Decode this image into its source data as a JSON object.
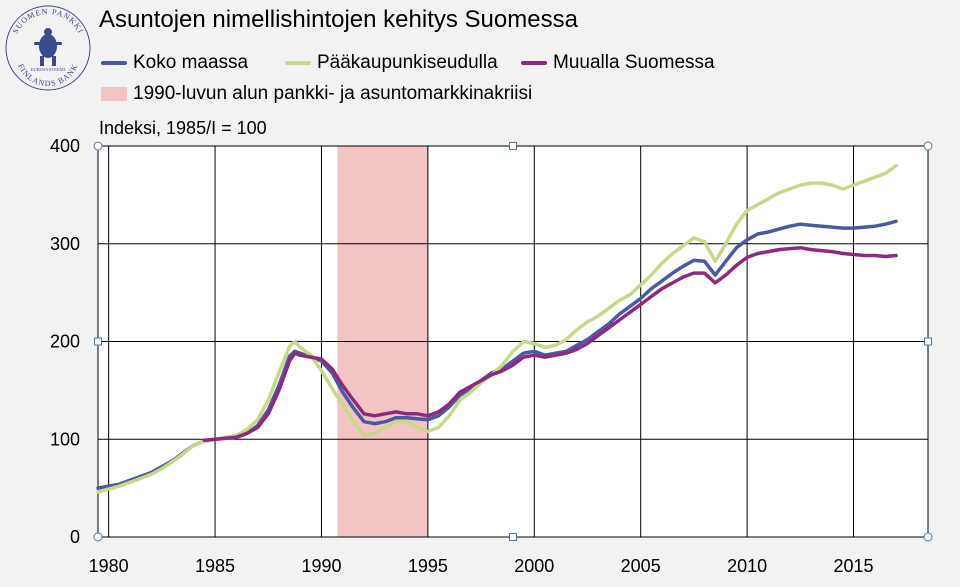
{
  "title": "Asuntojen nimellishintojen kehitys Suomessa",
  "logo": {
    "icon": "suomen-pankki-seal-icon",
    "text_top": "SUOMEN PANKKI",
    "text_bottom": "FINLANDS BANK",
    "text_inner": "EUROSYSTEEMI"
  },
  "colors": {
    "background": "#f2f2f2",
    "koko": "#4a5a9e",
    "paakaupunki": "#c6d98a",
    "muualla": "#8e2a7e",
    "crisis": "#f4c4c4",
    "grid": "#000000"
  },
  "chart_data": {
    "type": "line",
    "index_label": "Indeksi, 1985/I = 100",
    "xlim": [
      1979.5,
      2018.5
    ],
    "ylim": [
      0,
      400
    ],
    "xticks": [
      "1980",
      "1985",
      "1990",
      "1995",
      "2000",
      "2005",
      "2010",
      "2015"
    ],
    "yticks": [
      "0",
      "100",
      "200",
      "300",
      "400"
    ],
    "grid": true,
    "legend_position": "top",
    "shaded_range": {
      "name": "1990-luvun alun pankki- ja asuntomarkkinakriisi",
      "x": [
        1990.75,
        1995.0
      ]
    },
    "series": [
      {
        "name": "Koko maassa",
        "color_key": "koko",
        "points": [
          [
            1979.5,
            50
          ],
          [
            1980.5,
            54
          ],
          [
            1981.0,
            58
          ],
          [
            1981.5,
            62
          ],
          [
            1982.0,
            66
          ],
          [
            1982.5,
            72
          ],
          [
            1983.0,
            78
          ],
          [
            1983.5,
            86
          ],
          [
            1984.0,
            94
          ],
          [
            1984.5,
            98
          ],
          [
            1985.0,
            100
          ],
          [
            1985.5,
            101
          ],
          [
            1986.0,
            102
          ],
          [
            1986.5,
            106
          ],
          [
            1987.0,
            114
          ],
          [
            1987.5,
            130
          ],
          [
            1988.0,
            155
          ],
          [
            1988.5,
            185
          ],
          [
            1988.75,
            190
          ],
          [
            1989.0,
            188
          ],
          [
            1989.5,
            184
          ],
          [
            1990.0,
            180
          ],
          [
            1990.5,
            168
          ],
          [
            1991.0,
            148
          ],
          [
            1991.5,
            132
          ],
          [
            1992.0,
            118
          ],
          [
            1992.5,
            116
          ],
          [
            1993.0,
            118
          ],
          [
            1993.5,
            122
          ],
          [
            1994.0,
            122
          ],
          [
            1994.5,
            121
          ],
          [
            1995.0,
            120
          ],
          [
            1995.5,
            124
          ],
          [
            1996.0,
            133
          ],
          [
            1996.5,
            145
          ],
          [
            1997.0,
            152
          ],
          [
            1997.5,
            160
          ],
          [
            1998.0,
            168
          ],
          [
            1998.5,
            172
          ],
          [
            1999.0,
            180
          ],
          [
            1999.5,
            188
          ],
          [
            2000.0,
            190
          ],
          [
            2000.5,
            186
          ],
          [
            2001.0,
            188
          ],
          [
            2001.5,
            190
          ],
          [
            2002.0,
            196
          ],
          [
            2002.5,
            202
          ],
          [
            2003.0,
            210
          ],
          [
            2003.5,
            218
          ],
          [
            2004.0,
            228
          ],
          [
            2004.5,
            236
          ],
          [
            2005.0,
            244
          ],
          [
            2005.5,
            254
          ],
          [
            2006.0,
            262
          ],
          [
            2006.5,
            270
          ],
          [
            2007.0,
            277
          ],
          [
            2007.5,
            283
          ],
          [
            2008.0,
            282
          ],
          [
            2008.5,
            268
          ],
          [
            2009.0,
            282
          ],
          [
            2009.5,
            296
          ],
          [
            2010.0,
            304
          ],
          [
            2010.5,
            310
          ],
          [
            2011.0,
            312
          ],
          [
            2011.5,
            315
          ],
          [
            2012.0,
            318
          ],
          [
            2012.5,
            320
          ],
          [
            2013.0,
            319
          ],
          [
            2013.5,
            318
          ],
          [
            2014.0,
            317
          ],
          [
            2014.5,
            316
          ],
          [
            2015.0,
            316
          ],
          [
            2015.5,
            317
          ],
          [
            2016.0,
            318
          ],
          [
            2016.5,
            320
          ],
          [
            2017.0,
            323
          ]
        ]
      },
      {
        "name": "Pääkaupunkiseudulla",
        "color_key": "paakaupunki",
        "points": [
          [
            1979.5,
            46
          ],
          [
            1980.5,
            52
          ],
          [
            1981.0,
            56
          ],
          [
            1981.5,
            60
          ],
          [
            1982.0,
            64
          ],
          [
            1982.5,
            70
          ],
          [
            1983.0,
            77
          ],
          [
            1983.5,
            85
          ],
          [
            1984.0,
            94
          ],
          [
            1984.5,
            98
          ],
          [
            1985.0,
            100
          ],
          [
            1985.5,
            102
          ],
          [
            1986.0,
            104
          ],
          [
            1986.5,
            110
          ],
          [
            1987.0,
            120
          ],
          [
            1987.5,
            140
          ],
          [
            1988.0,
            168
          ],
          [
            1988.5,
            195
          ],
          [
            1988.75,
            200
          ],
          [
            1989.0,
            194
          ],
          [
            1989.5,
            186
          ],
          [
            1990.0,
            170
          ],
          [
            1990.5,
            152
          ],
          [
            1991.0,
            135
          ],
          [
            1991.5,
            118
          ],
          [
            1992.0,
            104
          ],
          [
            1992.5,
            106
          ],
          [
            1993.0,
            112
          ],
          [
            1993.5,
            118
          ],
          [
            1994.0,
            118
          ],
          [
            1994.5,
            112
          ],
          [
            1995.0,
            108
          ],
          [
            1995.5,
            112
          ],
          [
            1996.0,
            124
          ],
          [
            1996.5,
            140
          ],
          [
            1997.0,
            148
          ],
          [
            1997.5,
            158
          ],
          [
            1998.0,
            166
          ],
          [
            1998.5,
            176
          ],
          [
            1999.0,
            190
          ],
          [
            1999.5,
            200
          ],
          [
            2000.0,
            198
          ],
          [
            2000.5,
            194
          ],
          [
            2001.0,
            196
          ],
          [
            2001.5,
            202
          ],
          [
            2002.0,
            212
          ],
          [
            2002.5,
            220
          ],
          [
            2003.0,
            226
          ],
          [
            2003.5,
            234
          ],
          [
            2004.0,
            242
          ],
          [
            2004.5,
            248
          ],
          [
            2005.0,
            258
          ],
          [
            2005.5,
            268
          ],
          [
            2006.0,
            280
          ],
          [
            2006.5,
            290
          ],
          [
            2007.0,
            298
          ],
          [
            2007.5,
            306
          ],
          [
            2008.0,
            302
          ],
          [
            2008.5,
            282
          ],
          [
            2009.0,
            300
          ],
          [
            2009.5,
            320
          ],
          [
            2010.0,
            334
          ],
          [
            2010.5,
            340
          ],
          [
            2011.0,
            346
          ],
          [
            2011.5,
            352
          ],
          [
            2012.0,
            356
          ],
          [
            2012.5,
            360
          ],
          [
            2013.0,
            362
          ],
          [
            2013.5,
            362
          ],
          [
            2014.0,
            360
          ],
          [
            2014.5,
            356
          ],
          [
            2015.0,
            360
          ],
          [
            2015.5,
            364
          ],
          [
            2016.0,
            368
          ],
          [
            2016.5,
            372
          ],
          [
            2017.0,
            380
          ]
        ]
      },
      {
        "name": "Muualla Suomessa",
        "color_key": "muualla",
        "points": [
          [
            1984.5,
            99
          ],
          [
            1985.0,
            100
          ],
          [
            1985.5,
            101
          ],
          [
            1986.0,
            102
          ],
          [
            1986.5,
            106
          ],
          [
            1987.0,
            112
          ],
          [
            1987.5,
            126
          ],
          [
            1988.0,
            150
          ],
          [
            1988.5,
            180
          ],
          [
            1988.75,
            188
          ],
          [
            1989.0,
            186
          ],
          [
            1989.5,
            184
          ],
          [
            1990.0,
            182
          ],
          [
            1990.5,
            172
          ],
          [
            1991.0,
            155
          ],
          [
            1991.5,
            140
          ],
          [
            1992.0,
            126
          ],
          [
            1992.5,
            124
          ],
          [
            1993.0,
            126
          ],
          [
            1993.5,
            128
          ],
          [
            1994.0,
            126
          ],
          [
            1994.5,
            126
          ],
          [
            1995.0,
            124
          ],
          [
            1995.5,
            128
          ],
          [
            1996.0,
            136
          ],
          [
            1996.5,
            148
          ],
          [
            1997.0,
            154
          ],
          [
            1997.5,
            160
          ],
          [
            1998.0,
            166
          ],
          [
            1998.5,
            170
          ],
          [
            1999.0,
            176
          ],
          [
            1999.5,
            184
          ],
          [
            2000.0,
            186
          ],
          [
            2000.5,
            184
          ],
          [
            2001.0,
            186
          ],
          [
            2001.5,
            188
          ],
          [
            2002.0,
            192
          ],
          [
            2002.5,
            198
          ],
          [
            2003.0,
            206
          ],
          [
            2003.5,
            214
          ],
          [
            2004.0,
            222
          ],
          [
            2004.5,
            230
          ],
          [
            2005.0,
            238
          ],
          [
            2005.5,
            246
          ],
          [
            2006.0,
            254
          ],
          [
            2006.5,
            260
          ],
          [
            2007.0,
            266
          ],
          [
            2007.5,
            270
          ],
          [
            2008.0,
            270
          ],
          [
            2008.5,
            260
          ],
          [
            2009.0,
            268
          ],
          [
            2009.5,
            278
          ],
          [
            2010.0,
            286
          ],
          [
            2010.5,
            290
          ],
          [
            2011.0,
            292
          ],
          [
            2011.5,
            294
          ],
          [
            2012.0,
            295
          ],
          [
            2012.5,
            296
          ],
          [
            2013.0,
            294
          ],
          [
            2013.5,
            293
          ],
          [
            2014.0,
            292
          ],
          [
            2014.5,
            290
          ],
          [
            2015.0,
            289
          ],
          [
            2015.5,
            288
          ],
          [
            2016.0,
            288
          ],
          [
            2016.5,
            287
          ],
          [
            2017.0,
            288
          ]
        ]
      }
    ]
  }
}
